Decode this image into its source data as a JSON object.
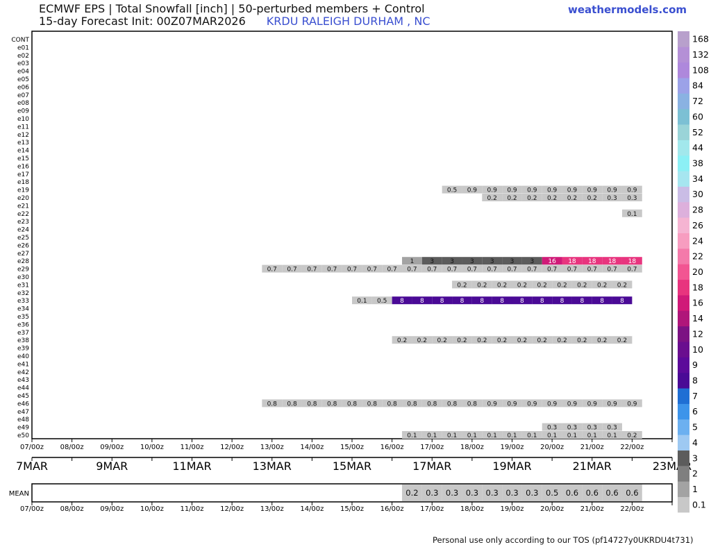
{
  "header": {
    "title_line1": "ECMWF EPS | Total Snowfall [inch] | 50-perturbed members + Control",
    "title_line2": "15-day Forecast Init: 00Z07MAR2026",
    "station": "KRDU RALEIGH DURHAM , NC",
    "brand": "weathermodels.com"
  },
  "footer": {
    "note": "Personal use only according to our TOS (pf14727y0UKRDU4t731)"
  },
  "chart_data": {
    "type": "heatmap",
    "variable": "Total Snowfall [inch]",
    "members": [
      "CONT",
      "e01",
      "e02",
      "e03",
      "e04",
      "e05",
      "e06",
      "e07",
      "e08",
      "e09",
      "e10",
      "e11",
      "e12",
      "e13",
      "e14",
      "e15",
      "e16",
      "e17",
      "e18",
      "e19",
      "e20",
      "e21",
      "e22",
      "e23",
      "e24",
      "e25",
      "e26",
      "e27",
      "e28",
      "e29",
      "e30",
      "e31",
      "e32",
      "e33",
      "e34",
      "e35",
      "e36",
      "e37",
      "e38",
      "e39",
      "e40",
      "e41",
      "e42",
      "e43",
      "e44",
      "e45",
      "e46",
      "e47",
      "e48",
      "e49",
      "e50"
    ],
    "x_range_days": [
      7,
      23
    ],
    "x_tick_labels": [
      "07/00z",
      "08/00z",
      "09/00z",
      "10/00z",
      "11/00z",
      "12/00z",
      "13/00z",
      "14/00z",
      "15/00z",
      "16/00z",
      "17/00z",
      "18/00z",
      "19/00z",
      "20/00z",
      "21/00z",
      "22/00z"
    ],
    "date_labels": [
      {
        "day": 7,
        "label": "7MAR"
      },
      {
        "day": 9,
        "label": "9MAR"
      },
      {
        "day": 11,
        "label": "11MAR"
      },
      {
        "day": 13,
        "label": "13MAR"
      },
      {
        "day": 15,
        "label": "15MAR"
      },
      {
        "day": 17,
        "label": "17MAR"
      },
      {
        "day": 19,
        "label": "19MAR"
      },
      {
        "day": 21,
        "label": "21MAR"
      },
      {
        "day": 23,
        "label": "23MAR"
      }
    ],
    "step_days": 0.5,
    "rows": [
      {
        "member": "e19",
        "start_day": 17.5,
        "values": [
          "0.5",
          "0.9",
          "0.9",
          "0.9",
          "0.9",
          "0.9",
          "0.9",
          "0.9",
          "0.9",
          "0.9"
        ]
      },
      {
        "member": "e20",
        "start_day": 18.0,
        "values": [
          "",
          "0.2",
          "0.2",
          "0.2",
          "0.2",
          "0.2",
          "0.2",
          "0.3",
          "0.3"
        ]
      },
      {
        "member": "e22",
        "start_day": 22.0,
        "values": [
          "0.1"
        ]
      },
      {
        "member": "e28",
        "start_day": 16.5,
        "values": [
          "1",
          "3",
          "3",
          "3",
          "3",
          "3",
          "3",
          "16",
          "18",
          "18",
          "18",
          "18"
        ]
      },
      {
        "member": "e29",
        "start_day": 13.0,
        "values": [
          "0.7",
          "0.7",
          "0.7",
          "0.7",
          "0.7",
          "0.7",
          "0.7",
          "0.7",
          "0.7",
          "0.7",
          "0.7",
          "0.7",
          "0.7",
          "0.7",
          "0.7",
          "0.7",
          "0.7",
          "0.7",
          "0.7"
        ]
      },
      {
        "member": "e31",
        "start_day": 17.75,
        "values": [
          "0.2",
          "0.2",
          "0.2",
          "0.2",
          "0.2",
          "0.2",
          "0.2",
          "0.2",
          "0.2"
        ]
      },
      {
        "member": "e33",
        "start_day": 15.25,
        "values": [
          "0.1",
          "0.5",
          "8",
          "8",
          "8",
          "8",
          "8",
          "8",
          "8",
          "8",
          "8",
          "8",
          "8",
          "8"
        ]
      },
      {
        "member": "e38",
        "start_day": 16.25,
        "values": [
          "0.2",
          "0.2",
          "0.2",
          "0.2",
          "0.2",
          "0.2",
          "0.2",
          "0.2",
          "0.2",
          "0.2",
          "0.2",
          "0.2"
        ]
      },
      {
        "member": "e46",
        "start_day": 13.0,
        "values": [
          "0.8",
          "0.8",
          "0.8",
          "0.8",
          "0.8",
          "0.8",
          "0.8",
          "0.8",
          "0.8",
          "0.8",
          "0.8",
          "0.9",
          "0.9",
          "0.9",
          "0.9",
          "0.9",
          "0.9",
          "0.9",
          "0.9"
        ]
      },
      {
        "member": "e49",
        "start_day": 20.0,
        "values": [
          "0.3",
          "0.3",
          "0.3",
          "0.3"
        ]
      },
      {
        "member": "e50",
        "start_day": 16.5,
        "values": [
          "0.1",
          "0.1",
          "0.1",
          "0.1",
          "0.1",
          "0.1",
          "0.1",
          "0.1",
          "0.1",
          "0.1",
          "0.1",
          "0.2"
        ]
      }
    ],
    "mean": {
      "label": "MEAN",
      "start_day": 16.5,
      "values": [
        "0.2",
        "0.3",
        "0.3",
        "0.3",
        "0.3",
        "0.3",
        "0.3",
        "0.5",
        "0.6",
        "0.6",
        "0.6",
        "0.6"
      ]
    },
    "colorbar": {
      "levels": [
        "0.1",
        "1",
        "2",
        "3",
        "4",
        "5",
        "6",
        "7",
        "8",
        "9",
        "10",
        "12",
        "14",
        "16",
        "18",
        "20",
        "22",
        "24",
        "26",
        "28",
        "30",
        "34",
        "38",
        "44",
        "52",
        "60",
        "72",
        "84",
        "108",
        "132",
        "168"
      ],
      "colors": [
        "#c8c8c8",
        "#a3a3a3",
        "#7f7f7f",
        "#5c5c5c",
        "#9ec9f2",
        "#6cb0f0",
        "#3d94ea",
        "#1f6fd4",
        "#4a0a96",
        "#5c0a9a",
        "#6a0e8f",
        "#7c1283",
        "#b0167a",
        "#d01a78",
        "#e8347e",
        "#f25592",
        "#f47aaa",
        "#f79dc0",
        "#f5b4d2",
        "#ddb0dc",
        "#cabde6",
        "#a6e6f0",
        "#8cf0f5",
        "#a2e8ec",
        "#9ad4d8",
        "#7cc0d4",
        "#8ab2e2",
        "#9ca2e8",
        "#ae88dc",
        "#b490d6",
        "#b8a0cc"
      ]
    }
  }
}
